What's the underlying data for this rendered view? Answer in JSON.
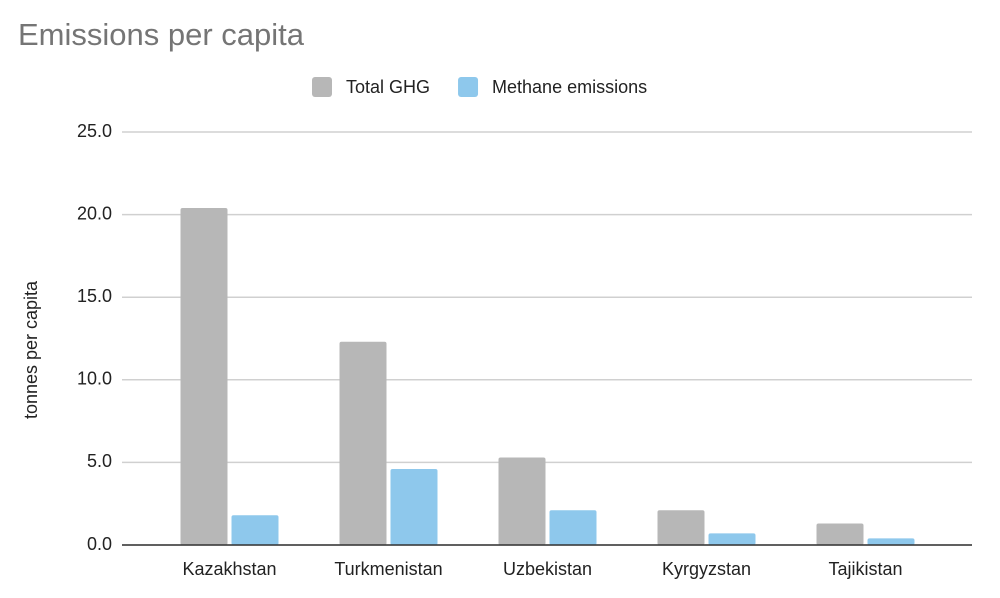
{
  "chart_data": {
    "type": "bar",
    "title": "Emissions per capita",
    "y_label": "tonnes per capita",
    "categories": [
      "Kazakhstan",
      "Turkmenistan",
      "Uzbekistan",
      "Kyrgyzstan",
      "Tajikistan"
    ],
    "series": [
      {
        "name": "Total GHG",
        "color": "#b7b7b7",
        "values": [
          20.4,
          12.3,
          5.3,
          2.1,
          1.3
        ]
      },
      {
        "name": "Methane emissions",
        "color": "#8ec8ec",
        "values": [
          1.8,
          4.6,
          2.1,
          0.7,
          0.4
        ]
      }
    ],
    "ylim": [
      0,
      25
    ],
    "yticks": [
      {
        "value": 0,
        "label": "0.0"
      },
      {
        "value": 5,
        "label": "5.0"
      },
      {
        "value": 10,
        "label": "10.0"
      },
      {
        "value": 15,
        "label": "15.0"
      },
      {
        "value": 20,
        "label": "20.0"
      },
      {
        "value": 25,
        "label": "25.0"
      }
    ],
    "grid": true,
    "legend": "top"
  }
}
